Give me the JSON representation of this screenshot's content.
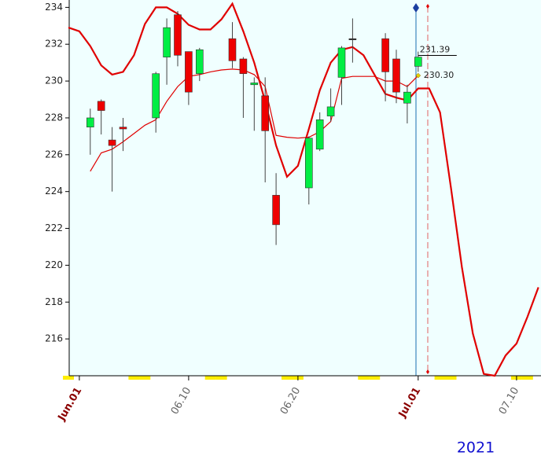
{
  "chart_data": {
    "type": "candlestick",
    "x": [
      "2021-06-01",
      "2021-06-02",
      "2021-06-03",
      "2021-06-04",
      "2021-06-07",
      "2021-06-08",
      "2021-06-09",
      "2021-06-10",
      "2021-06-11",
      "2021-06-14",
      "2021-06-15",
      "2021-06-16",
      "2021-06-17",
      "2021-06-18",
      "2021-06-21",
      "2021-06-22",
      "2021-06-23",
      "2021-06-24",
      "2021-06-25",
      "2021-06-28",
      "2021-06-29",
      "2021-06-30",
      "2021-07-01"
    ],
    "open": [
      227.5,
      228.9,
      226.8,
      227.5,
      228.0,
      231.3,
      233.6,
      231.6,
      230.4,
      232.3,
      231.2,
      229.8,
      229.2,
      223.8,
      224.2,
      226.3,
      228.1,
      230.2,
      232.3,
      232.3,
      231.2,
      228.8,
      230.8
    ],
    "high": [
      228.5,
      229.0,
      227.5,
      228.0,
      230.5,
      233.4,
      233.8,
      231.6,
      231.8,
      233.2,
      231.3,
      230.2,
      230.2,
      225.0,
      227.0,
      228.3,
      229.6,
      231.9,
      233.4,
      232.6,
      231.7,
      229.8,
      231.6
    ],
    "low": [
      226.0,
      227.1,
      224.0,
      226.2,
      227.2,
      229.8,
      230.8,
      228.7,
      230.0,
      230.7,
      228.0,
      227.3,
      224.5,
      221.1,
      223.3,
      226.2,
      227.8,
      228.7,
      231.0,
      228.9,
      228.8,
      227.7,
      230.5
    ],
    "close": [
      228.0,
      228.4,
      226.5,
      227.4,
      230.4,
      232.9,
      231.4,
      229.4,
      231.7,
      231.1,
      230.4,
      229.9,
      227.3,
      222.2,
      226.9,
      227.9,
      228.6,
      231.8,
      232.3,
      230.5,
      229.4,
      229.4,
      231.3
    ],
    "up_color": "#00ee44",
    "down_color": "#ee0000",
    "lines": [
      {
        "color": "#e00000",
        "width": 2.2,
        "x": [
          "2021-05-30",
          "2021-05-31",
          "2021-06-01",
          "2021-06-02",
          "2021-06-03",
          "2021-06-04",
          "2021-06-05",
          "2021-06-06",
          "2021-06-07",
          "2021-06-08",
          "2021-06-09",
          "2021-06-10",
          "2021-06-11",
          "2021-06-12",
          "2021-06-13",
          "2021-06-14",
          "2021-06-15",
          "2021-06-16",
          "2021-06-17",
          "2021-06-18",
          "2021-06-19",
          "2021-06-20",
          "2021-06-21",
          "2021-06-22",
          "2021-06-23",
          "2021-06-24",
          "2021-06-25",
          "2021-06-26",
          "2021-06-27",
          "2021-06-28",
          "2021-06-29",
          "2021-06-30",
          "2021-07-01",
          "2021-07-02",
          "2021-07-03",
          "2021-07-04",
          "2021-07-05",
          "2021-07-06",
          "2021-07-07",
          "2021-07-08",
          "2021-07-09",
          "2021-07-10",
          "2021-07-11",
          "2021-07-12"
        ],
        "values": [
          232.9,
          232.7,
          231.9,
          230.85,
          230.35,
          230.5,
          231.4,
          233.1,
          234.0,
          234.0,
          233.65,
          233.05,
          232.8,
          232.8,
          233.35,
          234.2,
          232.7,
          231.0,
          228.9,
          226.5,
          224.8,
          225.4,
          227.4,
          229.5,
          231.0,
          231.7,
          231.85,
          231.4,
          230.35,
          229.3,
          229.1,
          228.95,
          229.6,
          229.6,
          228.3,
          224.2,
          219.9,
          216.3,
          214.1,
          214.0,
          215.1,
          215.75,
          217.2,
          218.8
        ]
      },
      {
        "color": "#e00000",
        "width": 1.2,
        "x": [
          "2021-06-01",
          "2021-06-02",
          "2021-06-03",
          "2021-06-04",
          "2021-06-05",
          "2021-06-06",
          "2021-06-07",
          "2021-06-08",
          "2021-06-09",
          "2021-06-10",
          "2021-06-11",
          "2021-06-12",
          "2021-06-13",
          "2021-06-14",
          "2021-06-15",
          "2021-06-16",
          "2021-06-17",
          "2021-06-18",
          "2021-06-19",
          "2021-06-20",
          "2021-06-21",
          "2021-06-22",
          "2021-06-23",
          "2021-06-24",
          "2021-06-25",
          "2021-06-26",
          "2021-06-27",
          "2021-06-28",
          "2021-06-29",
          "2021-06-30",
          "2021-07-01"
        ],
        "values": [
          225.1,
          226.1,
          226.3,
          226.7,
          227.15,
          227.6,
          227.9,
          228.9,
          229.7,
          230.25,
          230.35,
          230.5,
          230.6,
          230.65,
          230.6,
          230.35,
          229.7,
          227.05,
          226.95,
          226.9,
          226.95,
          227.25,
          227.8,
          230.15,
          230.25,
          230.25,
          230.25,
          230.0,
          230.0,
          229.7,
          230.3
        ]
      }
    ],
    "ylim": [
      214,
      234.4
    ],
    "yticks": [
      216,
      218,
      220,
      222,
      224,
      226,
      228,
      230,
      232,
      234
    ],
    "xlim": [
      "2021-05-30",
      "2021-07-13"
    ],
    "xticks": [
      {
        "value": "2021-05-31",
        "label": "Jun.01"
      },
      {
        "value": "2021-06-10",
        "label": "06.10"
      },
      {
        "value": "2021-06-20",
        "label": "06.20"
      },
      {
        "value": "2021-07-01",
        "label": "Jul.01"
      },
      {
        "value": "2021-07-10",
        "label": "07.10"
      }
    ],
    "annotations": [
      {
        "value": 231.39,
        "label": "231.39"
      },
      {
        "value": 230.3,
        "label": "230.30"
      }
    ],
    "year": "2021"
  }
}
